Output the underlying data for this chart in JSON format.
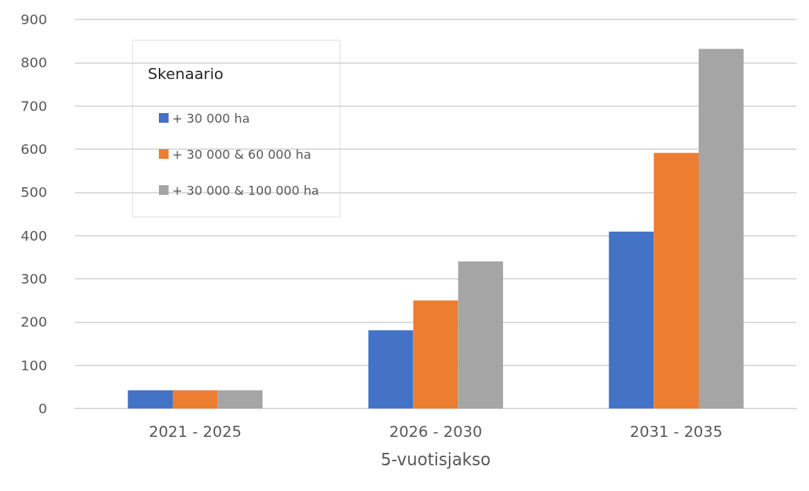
{
  "chart_data": {
    "type": "bar",
    "xlabel": "5-vuotisjakso",
    "legend_title": "Skenaario",
    "categories": [
      "2021 - 2025",
      "2026 - 2030",
      "2031 - 2035"
    ],
    "series": [
      {
        "name": "+ 30 000 ha",
        "color": "#4472c4",
        "values": [
          42,
          181,
          409
        ]
      },
      {
        "name": "+ 30 000 & 60 000 ha",
        "color": "#ed7d31",
        "values": [
          42,
          250,
          591
        ]
      },
      {
        "name": "+ 30 000 & 100 000 ha",
        "color": "#a5a5a5",
        "values": [
          42,
          340,
          832
        ]
      }
    ],
    "ylim": [
      0,
      900
    ],
    "yticks": [
      0,
      100,
      200,
      300,
      400,
      500,
      600,
      700,
      800,
      900
    ],
    "grid": "y",
    "legend": "top left"
  }
}
